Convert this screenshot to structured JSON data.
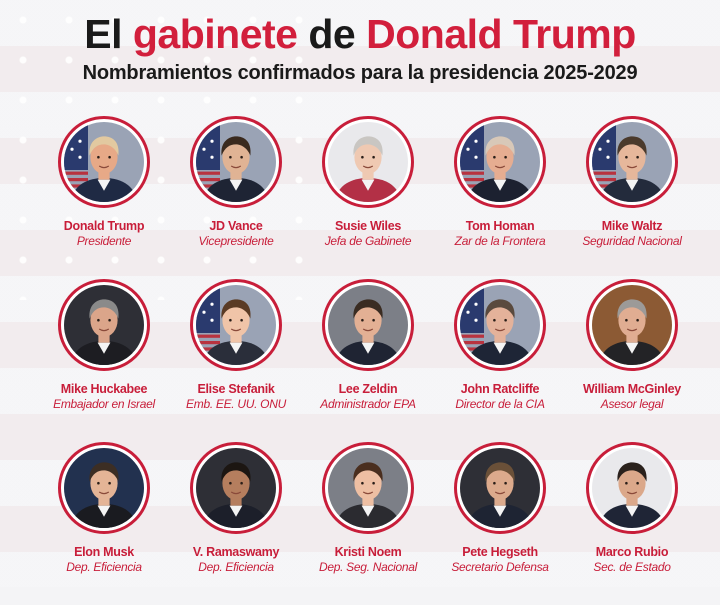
{
  "header": {
    "title_part1": "El",
    "title_part2": "gabinete",
    "title_part3": "de",
    "title_part4": "Donald Trump",
    "subtitle": "Nombramientos confirmados para la presidencia 2025-2029"
  },
  "colors": {
    "accent_red": "#c81e3a",
    "title_dark": "#1a1a1a"
  },
  "members": [
    {
      "name": "Donald Trump",
      "role": "Presidente",
      "bg": "flag",
      "hair": "#e2c9a0",
      "skin": "#e7a987",
      "suit": "#1f2a44"
    },
    {
      "name": "JD Vance",
      "role": "Vicepresidente",
      "bg": "flag",
      "hair": "#3a2a1e",
      "skin": "#e0b394",
      "suit": "#1e2434"
    },
    {
      "name": "Susie Wiles",
      "role": "Jefa de Gabinete",
      "bg": "light",
      "hair": "#c9c6c2",
      "skin": "#efc9b2",
      "suit": "#b33046"
    },
    {
      "name": "Tom Homan",
      "role": "Zar de la Frontera",
      "bg": "flag",
      "hair": "#d8c8b8",
      "skin": "#e6ad91",
      "suit": "#1c2130"
    },
    {
      "name": "Mike Waltz",
      "role": "Seguridad Nacional",
      "bg": "flag",
      "hair": "#4b3a2c",
      "skin": "#e6b79b",
      "suit": "#232b3c"
    },
    {
      "name": "Mike Huckabee",
      "role": "Embajador en Israel",
      "bg": "dark",
      "hair": "#8a8a8a",
      "skin": "#dba58a",
      "suit": "#1d1d22"
    },
    {
      "name": "Elise Stefanik",
      "role": "Emb. EE. UU. ONU",
      "bg": "flag",
      "hair": "#5a3b25",
      "skin": "#f0c4a8",
      "suit": "#2a2e3a"
    },
    {
      "name": "Lee Zeldin",
      "role": "Administrador EPA",
      "bg": "gray",
      "hair": "#3a2c22",
      "skin": "#e3b094",
      "suit": "#1f2433"
    },
    {
      "name": "John Ratcliffe",
      "role": "Director de la CIA",
      "bg": "flag",
      "hair": "#5a4a3e",
      "skin": "#e4b29a",
      "suit": "#1e2536"
    },
    {
      "name": "William McGinley",
      "role": "Asesor legal",
      "bg": "wood",
      "hair": "#9c9a98",
      "skin": "#e0ad92",
      "suit": "#232326"
    },
    {
      "name": "Elon Musk",
      "role": "Dep. Eficiencia",
      "bg": "blue",
      "hair": "#3c2e24",
      "skin": "#e4b496",
      "suit": "#1a1b20"
    },
    {
      "name": "V. Ramaswamy",
      "role": "Dep. Eficiencia",
      "bg": "dark",
      "hair": "#1c1612",
      "skin": "#b57e5e",
      "suit": "#1c1f2a"
    },
    {
      "name": "Kristi Noem",
      "role": "Dep. Seg. Nacional",
      "bg": "gray",
      "hair": "#4a2e1e",
      "skin": "#eebfa3",
      "suit": "#2b2b30"
    },
    {
      "name": "Pete Hegseth",
      "role": "Secretario Defensa",
      "bg": "dark",
      "hair": "#6a5038",
      "skin": "#dcaa8c",
      "suit": "#1e2433"
    },
    {
      "name": "Marco Rubio",
      "role": "Sec. de Estado",
      "bg": "light",
      "hair": "#2a211c",
      "skin": "#dba88a",
      "suit": "#1f2536"
    }
  ]
}
